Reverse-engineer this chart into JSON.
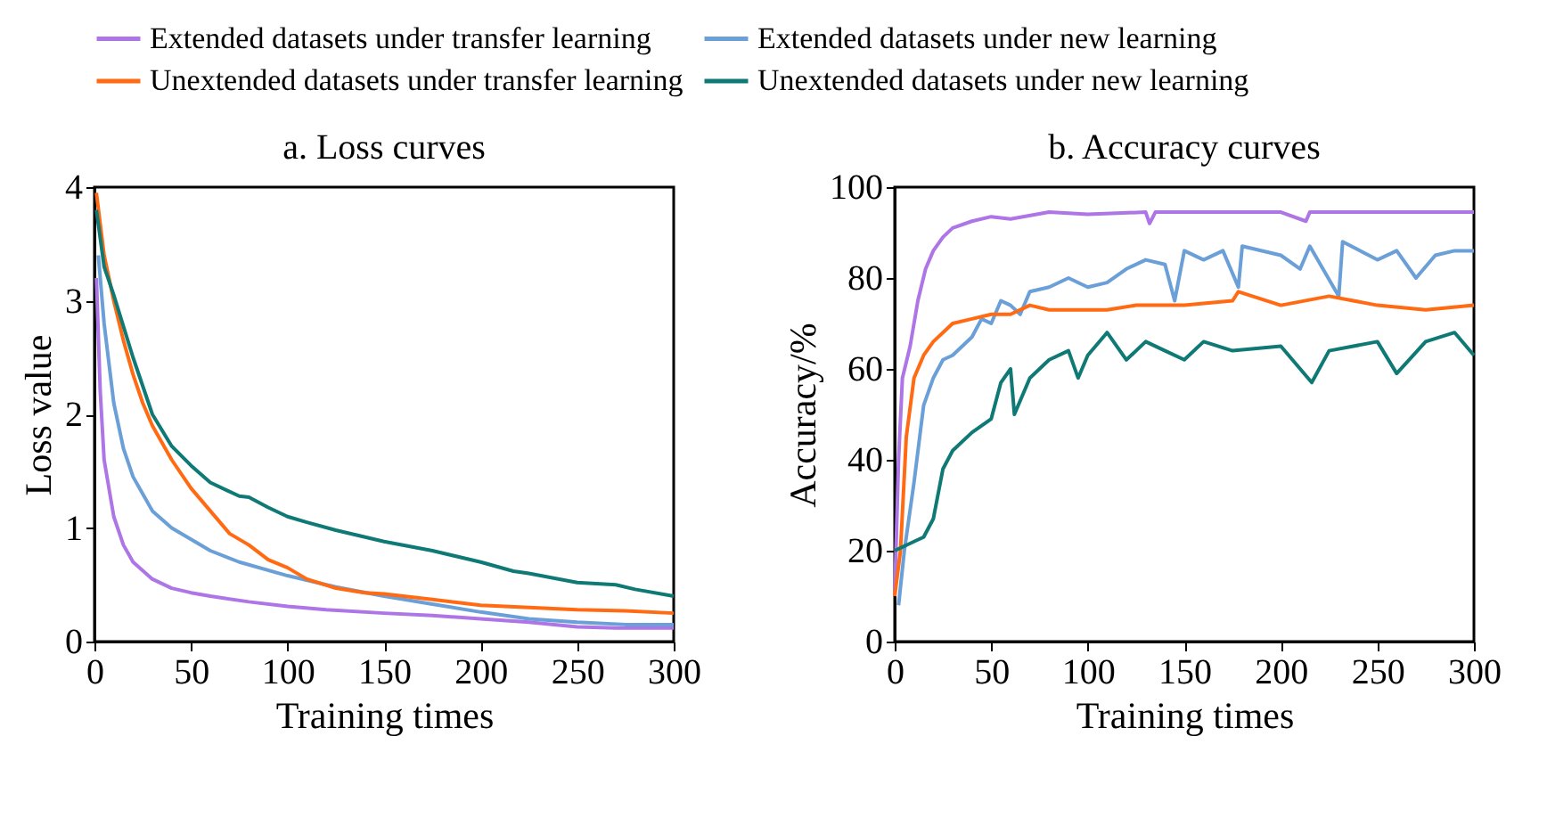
{
  "chart_data": [
    {
      "type": "line",
      "title": "a. Loss curves",
      "xlabel": "Training times",
      "ylabel": "Loss value",
      "xlim": [
        0,
        300
      ],
      "xticks": [
        0,
        50,
        100,
        150,
        200,
        250,
        300
      ],
      "ylim": [
        0,
        4
      ],
      "yticks": [
        0,
        1,
        2,
        3,
        4
      ],
      "grid": false,
      "legend": "top",
      "line_style": "solid",
      "marker": "none",
      "series": [
        {
          "name": "Extended datasets under transfer learning",
          "color": "#ad75e6",
          "x": [
            1,
            3,
            5,
            10,
            15,
            20,
            30,
            40,
            50,
            60,
            80,
            100,
            120,
            150,
            175,
            200,
            225,
            250,
            270,
            300
          ],
          "values": [
            3.2,
            2.2,
            1.6,
            1.1,
            0.85,
            0.7,
            0.55,
            0.47,
            0.43,
            0.4,
            0.35,
            0.31,
            0.28,
            0.25,
            0.23,
            0.2,
            0.17,
            0.13,
            0.12,
            0.12
          ]
        },
        {
          "name": "Extended datasets under new learning",
          "color": "#6a9fd8",
          "x": [
            2,
            5,
            10,
            15,
            20,
            25,
            30,
            40,
            50,
            60,
            75,
            100,
            125,
            150,
            175,
            200,
            225,
            250,
            275,
            300
          ],
          "values": [
            3.4,
            2.8,
            2.1,
            1.7,
            1.45,
            1.3,
            1.15,
            1.0,
            0.9,
            0.8,
            0.7,
            0.58,
            0.48,
            0.4,
            0.33,
            0.26,
            0.2,
            0.17,
            0.15,
            0.15
          ]
        },
        {
          "name": "Unextended datasets under transfer learning",
          "color": "#ff6a13",
          "x": [
            1,
            5,
            10,
            15,
            20,
            25,
            30,
            40,
            50,
            60,
            70,
            80,
            90,
            100,
            110,
            125,
            140,
            150,
            175,
            200,
            225,
            250,
            275,
            300
          ],
          "values": [
            3.95,
            3.4,
            3.0,
            2.65,
            2.35,
            2.1,
            1.9,
            1.6,
            1.35,
            1.15,
            0.95,
            0.85,
            0.72,
            0.65,
            0.55,
            0.47,
            0.43,
            0.42,
            0.37,
            0.32,
            0.3,
            0.28,
            0.27,
            0.25
          ]
        },
        {
          "name": "Unextended datasets under new learning",
          "color": "#0f7a75",
          "x": [
            1,
            5,
            10,
            20,
            30,
            40,
            50,
            60,
            75,
            80,
            90,
            100,
            110,
            125,
            150,
            175,
            200,
            217,
            225,
            250,
            270,
            280,
            300
          ],
          "values": [
            3.8,
            3.3,
            3.05,
            2.5,
            2.0,
            1.72,
            1.55,
            1.4,
            1.28,
            1.27,
            1.18,
            1.1,
            1.05,
            0.98,
            0.88,
            0.8,
            0.7,
            0.62,
            0.6,
            0.52,
            0.5,
            0.46,
            0.4
          ]
        }
      ]
    },
    {
      "type": "line",
      "title": "b. Accuracy curves",
      "xlabel": "Training times",
      "ylabel": "Accuracy/%",
      "xlim": [
        0,
        300
      ],
      "xticks": [
        0,
        50,
        100,
        150,
        200,
        250,
        300
      ],
      "ylim": [
        0,
        100
      ],
      "yticks": [
        0,
        20,
        40,
        60,
        80,
        100
      ],
      "grid": false,
      "legend": false,
      "line_style": "solid",
      "marker": "none",
      "series": [
        {
          "name": "Extended datasets under transfer learning",
          "color": "#ad75e6",
          "x": [
            0,
            2,
            4,
            8,
            12,
            16,
            20,
            25,
            30,
            40,
            50,
            60,
            80,
            100,
            130,
            132,
            135,
            150,
            200,
            213,
            215,
            250,
            300
          ],
          "values": [
            10,
            40,
            58,
            65,
            75,
            82,
            86,
            89,
            91,
            92.5,
            93.5,
            93,
            94.5,
            94,
            94.5,
            92,
            94.5,
            94.5,
            94.5,
            92.5,
            94.5,
            94.5,
            94.5
          ]
        },
        {
          "name": "Extended datasets under new learning",
          "color": "#6a9fd8",
          "x": [
            2,
            5,
            10,
            15,
            20,
            25,
            30,
            40,
            45,
            50,
            55,
            60,
            65,
            70,
            80,
            90,
            100,
            110,
            120,
            130,
            140,
            145,
            150,
            160,
            170,
            178,
            180,
            200,
            210,
            215,
            230,
            232,
            250,
            260,
            270,
            280,
            290,
            300
          ],
          "values": [
            8,
            20,
            35,
            52,
            58,
            62,
            63,
            67,
            71,
            70,
            75,
            74,
            72,
            77,
            78,
            80,
            78,
            79,
            82,
            84,
            83,
            75,
            86,
            84,
            86,
            78,
            87,
            85,
            82,
            87,
            76,
            88,
            84,
            86,
            80,
            85,
            86,
            86
          ]
        },
        {
          "name": "Unextended datasets under transfer learning",
          "color": "#ff6a13",
          "x": [
            0,
            3,
            6,
            10,
            15,
            20,
            25,
            30,
            40,
            50,
            60,
            70,
            80,
            100,
            110,
            125,
            150,
            175,
            178,
            200,
            225,
            250,
            275,
            300
          ],
          "values": [
            10,
            20,
            45,
            58,
            63,
            66,
            68,
            70,
            71,
            72,
            72,
            74,
            73,
            73,
            73,
            74,
            74,
            75,
            77,
            74,
            76,
            74,
            73,
            74
          ]
        },
        {
          "name": "Unextended datasets under new learning",
          "color": "#0f7a75",
          "x": [
            0,
            5,
            10,
            15,
            20,
            25,
            30,
            40,
            50,
            55,
            60,
            62,
            70,
            80,
            90,
            95,
            100,
            110,
            120,
            130,
            140,
            150,
            160,
            175,
            200,
            216,
            225,
            250,
            260,
            275,
            290,
            300
          ],
          "values": [
            20,
            21,
            22,
            23,
            27,
            38,
            42,
            46,
            49,
            57,
            60,
            50,
            58,
            62,
            64,
            58,
            63,
            68,
            62,
            66,
            64,
            62,
            66,
            64,
            65,
            57,
            64,
            66,
            59,
            66,
            68,
            63
          ]
        }
      ]
    }
  ]
}
